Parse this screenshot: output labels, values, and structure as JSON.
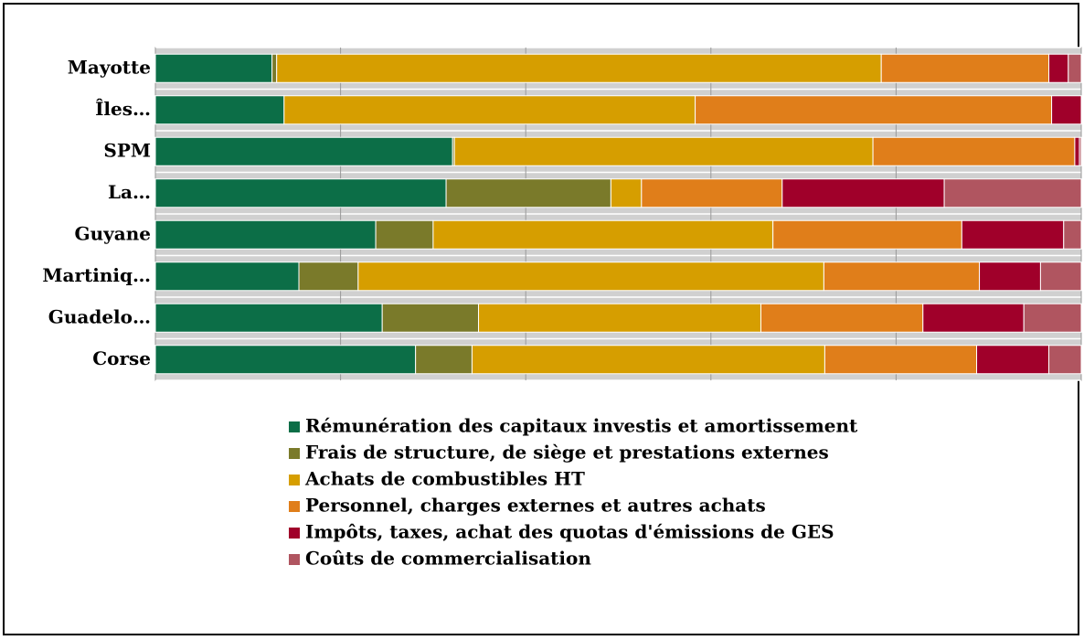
{
  "chart_data": {
    "type": "stacked_barh",
    "categories": [
      "Mayotte",
      "Îles…",
      "SPM",
      "La…",
      "Guyane",
      "Martiniq…",
      "Guadelo…",
      "Corse"
    ],
    "series": [
      {
        "name": "Rémunération des capitaux investis et amortissement",
        "color": "#0c6e47",
        "values": [
          12.6,
          13.9,
          32.1,
          31.4,
          23.8,
          15.5,
          24.5,
          28.1
        ]
      },
      {
        "name": "Frais de structure, de siège et prestations externes",
        "color": "#7a7a2a",
        "values": [
          0.5,
          0,
          0.2,
          17.8,
          6.2,
          6.4,
          10.4,
          6.1
        ]
      },
      {
        "name": "Achats de combustibles HT",
        "color": "#d69e00",
        "values": [
          65.3,
          44.4,
          45.2,
          3.3,
          36.7,
          50.3,
          30.5,
          38.1
        ]
      },
      {
        "name": "Personnel, charges externes et autres achats",
        "color": "#e07e1a",
        "values": [
          18.1,
          38.5,
          21.8,
          15.2,
          20.4,
          16.8,
          17.5,
          16.4
        ]
      },
      {
        "name": "Impôts, taxes, achat des quotas d'émissions de GES",
        "color": "#a0002a",
        "values": [
          2.1,
          3.2,
          0.5,
          17.5,
          11.0,
          6.6,
          10.9,
          7.8
        ]
      },
      {
        "name": "Coûts de commercialisation",
        "color": "#b05560",
        "values": [
          1.4,
          0,
          0.2,
          14.8,
          1.9,
          4.4,
          6.2,
          3.5
        ]
      }
    ],
    "xlim": [
      0,
      100
    ],
    "xticks": [
      0,
      20,
      40,
      60,
      80,
      100
    ],
    "grid": true
  }
}
